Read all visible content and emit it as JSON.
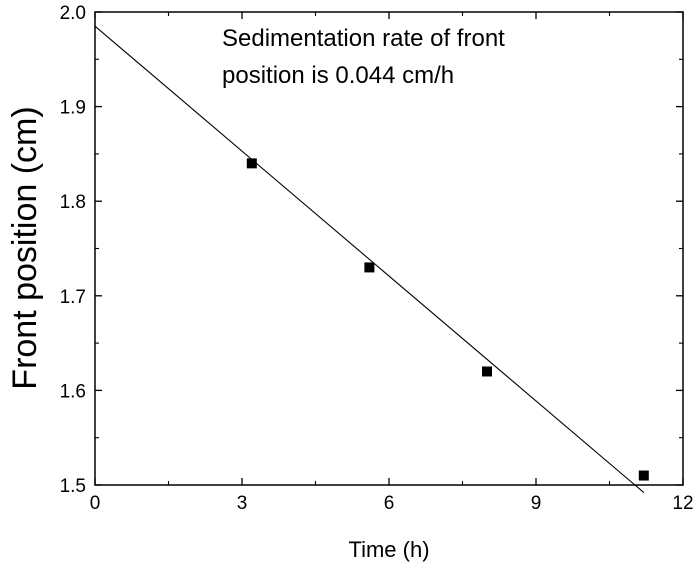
{
  "chart_data": {
    "type": "scatter",
    "title": "",
    "xlabel": "Time (h)",
    "ylabel": "Front  position (cm)",
    "xlim": [
      0,
      12
    ],
    "ylim": [
      1.5,
      2.0
    ],
    "xticks": [
      0,
      3,
      6,
      9,
      12
    ],
    "yticks": [
      1.5,
      1.6,
      1.7,
      1.8,
      1.9,
      2.0
    ],
    "xtick_labels": [
      "0",
      "3",
      "6",
      "9",
      "12"
    ],
    "ytick_labels": [
      "1.5",
      "1.6",
      "1.7",
      "1.8",
      "1.9",
      "2.0"
    ],
    "grid": false,
    "series": [
      {
        "marker": "square",
        "x": [
          3.2,
          5.6,
          8.0,
          11.2
        ],
        "y": [
          1.84,
          1.73,
          1.62,
          1.51
        ]
      }
    ],
    "fit_line": {
      "x": [
        0,
        11.2
      ],
      "y": [
        1.985,
        1.492
      ]
    },
    "annotation": {
      "line1": "Sedimentation rate of front",
      "line2": "position is 0.044 cm/h"
    }
  }
}
